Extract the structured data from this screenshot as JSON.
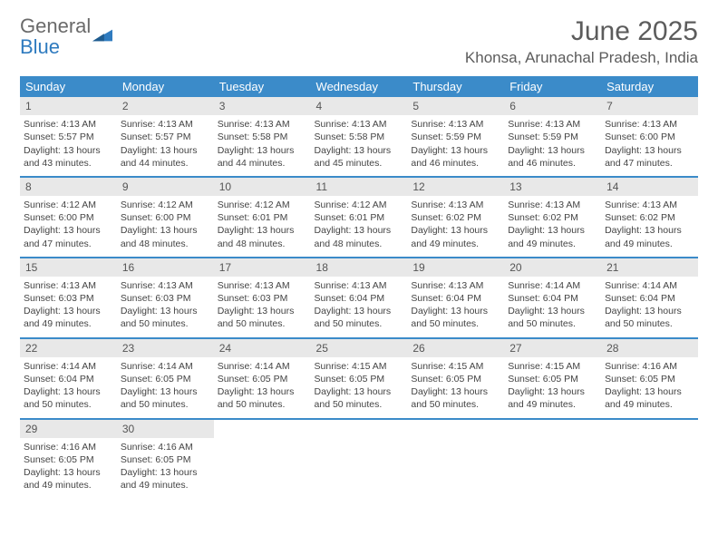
{
  "brand": {
    "part1": "General",
    "part2": "Blue"
  },
  "title": "June 2025",
  "location": "Khonsa, Arunachal Pradesh, India",
  "colors": {
    "header_bg": "#3b8bc9",
    "header_text": "#ffffff",
    "daynum_bg": "#e8e8e8",
    "rule": "#3b8bc9",
    "logo_gray": "#6a6a6a",
    "logo_blue": "#2f7bbf"
  },
  "weekdays": [
    "Sunday",
    "Monday",
    "Tuesday",
    "Wednesday",
    "Thursday",
    "Friday",
    "Saturday"
  ],
  "weeks": [
    [
      {
        "n": "1",
        "sr": "4:13 AM",
        "ss": "5:57 PM",
        "dl": "13 hours and 43 minutes."
      },
      {
        "n": "2",
        "sr": "4:13 AM",
        "ss": "5:57 PM",
        "dl": "13 hours and 44 minutes."
      },
      {
        "n": "3",
        "sr": "4:13 AM",
        "ss": "5:58 PM",
        "dl": "13 hours and 44 minutes."
      },
      {
        "n": "4",
        "sr": "4:13 AM",
        "ss": "5:58 PM",
        "dl": "13 hours and 45 minutes."
      },
      {
        "n": "5",
        "sr": "4:13 AM",
        "ss": "5:59 PM",
        "dl": "13 hours and 46 minutes."
      },
      {
        "n": "6",
        "sr": "4:13 AM",
        "ss": "5:59 PM",
        "dl": "13 hours and 46 minutes."
      },
      {
        "n": "7",
        "sr": "4:13 AM",
        "ss": "6:00 PM",
        "dl": "13 hours and 47 minutes."
      }
    ],
    [
      {
        "n": "8",
        "sr": "4:12 AM",
        "ss": "6:00 PM",
        "dl": "13 hours and 47 minutes."
      },
      {
        "n": "9",
        "sr": "4:12 AM",
        "ss": "6:00 PM",
        "dl": "13 hours and 48 minutes."
      },
      {
        "n": "10",
        "sr": "4:12 AM",
        "ss": "6:01 PM",
        "dl": "13 hours and 48 minutes."
      },
      {
        "n": "11",
        "sr": "4:12 AM",
        "ss": "6:01 PM",
        "dl": "13 hours and 48 minutes."
      },
      {
        "n": "12",
        "sr": "4:13 AM",
        "ss": "6:02 PM",
        "dl": "13 hours and 49 minutes."
      },
      {
        "n": "13",
        "sr": "4:13 AM",
        "ss": "6:02 PM",
        "dl": "13 hours and 49 minutes."
      },
      {
        "n": "14",
        "sr": "4:13 AM",
        "ss": "6:02 PM",
        "dl": "13 hours and 49 minutes."
      }
    ],
    [
      {
        "n": "15",
        "sr": "4:13 AM",
        "ss": "6:03 PM",
        "dl": "13 hours and 49 minutes."
      },
      {
        "n": "16",
        "sr": "4:13 AM",
        "ss": "6:03 PM",
        "dl": "13 hours and 50 minutes."
      },
      {
        "n": "17",
        "sr": "4:13 AM",
        "ss": "6:03 PM",
        "dl": "13 hours and 50 minutes."
      },
      {
        "n": "18",
        "sr": "4:13 AM",
        "ss": "6:04 PM",
        "dl": "13 hours and 50 minutes."
      },
      {
        "n": "19",
        "sr": "4:13 AM",
        "ss": "6:04 PM",
        "dl": "13 hours and 50 minutes."
      },
      {
        "n": "20",
        "sr": "4:14 AM",
        "ss": "6:04 PM",
        "dl": "13 hours and 50 minutes."
      },
      {
        "n": "21",
        "sr": "4:14 AM",
        "ss": "6:04 PM",
        "dl": "13 hours and 50 minutes."
      }
    ],
    [
      {
        "n": "22",
        "sr": "4:14 AM",
        "ss": "6:04 PM",
        "dl": "13 hours and 50 minutes."
      },
      {
        "n": "23",
        "sr": "4:14 AM",
        "ss": "6:05 PM",
        "dl": "13 hours and 50 minutes."
      },
      {
        "n": "24",
        "sr": "4:14 AM",
        "ss": "6:05 PM",
        "dl": "13 hours and 50 minutes."
      },
      {
        "n": "25",
        "sr": "4:15 AM",
        "ss": "6:05 PM",
        "dl": "13 hours and 50 minutes."
      },
      {
        "n": "26",
        "sr": "4:15 AM",
        "ss": "6:05 PM",
        "dl": "13 hours and 50 minutes."
      },
      {
        "n": "27",
        "sr": "4:15 AM",
        "ss": "6:05 PM",
        "dl": "13 hours and 49 minutes."
      },
      {
        "n": "28",
        "sr": "4:16 AM",
        "ss": "6:05 PM",
        "dl": "13 hours and 49 minutes."
      }
    ],
    [
      {
        "n": "29",
        "sr": "4:16 AM",
        "ss": "6:05 PM",
        "dl": "13 hours and 49 minutes."
      },
      {
        "n": "30",
        "sr": "4:16 AM",
        "ss": "6:05 PM",
        "dl": "13 hours and 49 minutes."
      },
      null,
      null,
      null,
      null,
      null
    ]
  ],
  "labels": {
    "sunrise": "Sunrise: ",
    "sunset": "Sunset: ",
    "daylight": "Daylight: "
  }
}
